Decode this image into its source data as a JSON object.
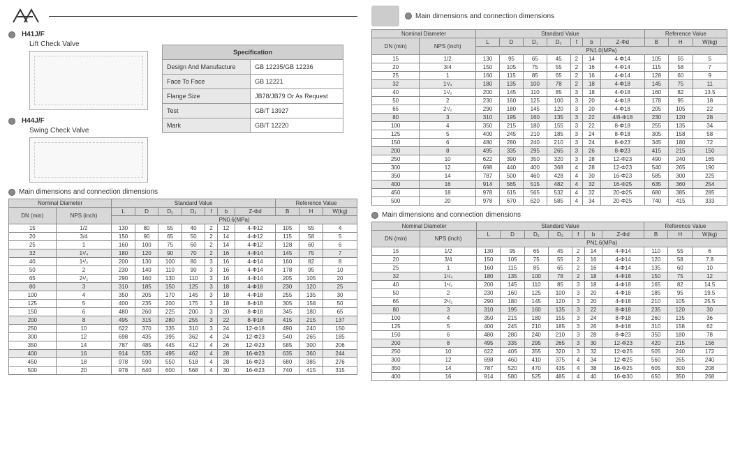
{
  "header": {
    "logo_alt": "Logo"
  },
  "products": [
    {
      "code": "H41J/F",
      "name": "Lift Check Valve"
    },
    {
      "code": "H44J/F",
      "name": "Swing Check Valve"
    }
  ],
  "spec": {
    "header": "Specification",
    "rows": [
      {
        "key": "Design And Manufacture",
        "val": "GB 12235/GB 12236"
      },
      {
        "key": "Face To Face",
        "val": "GB 12221"
      },
      {
        "key": "Flange Size",
        "val": "JB78/JB79 Or As Request"
      },
      {
        "key": "Test",
        "val": "GB/T 13927"
      },
      {
        "key": "Mark",
        "val": "GB/T 12220"
      }
    ]
  },
  "section_title": "Main dimensions and connection dimensions",
  "table_headers": {
    "nominal": "Nominal Diameter",
    "standard": "Standard Value",
    "reference": "Reference Value",
    "dn": "DN (min)",
    "nps": "NPS (inch)",
    "cols": [
      "L",
      "D",
      "D₁",
      "D₂",
      "f",
      "b",
      "Z-Φd",
      "B",
      "H",
      "W(kg)"
    ]
  },
  "tables": [
    {
      "pn_label": "PN0.6(MPa)",
      "rows": [
        [
          "15",
          "1/2",
          "130",
          "80",
          "55",
          "40",
          "2",
          "12",
          "4-Φ12",
          "105",
          "55",
          "4"
        ],
        [
          "20",
          "3/4",
          "150",
          "90",
          "65",
          "50",
          "2",
          "14",
          "4-Φ12",
          "115",
          "58",
          "5"
        ],
        [
          "25",
          "1",
          "160",
          "100",
          "75",
          "60",
          "2",
          "14",
          "4-Φ12",
          "128",
          "60",
          "6"
        ],
        [
          "32",
          "1¹/₄",
          "180",
          "120",
          "90",
          "70",
          "2",
          "16",
          "4-Φ14",
          "145",
          "75",
          "7"
        ],
        [
          "40",
          "1¹/₂",
          "200",
          "130",
          "100",
          "80",
          "3",
          "16",
          "4-Φ14",
          "160",
          "82",
          "8"
        ],
        [
          "50",
          "2",
          "230",
          "140",
          "110",
          "90",
          "3",
          "16",
          "4-Φ14",
          "178",
          "95",
          "10"
        ],
        [
          "65",
          "2¹/₂",
          "290",
          "160",
          "130",
          "110",
          "3",
          "16",
          "4-Φ14",
          "205",
          "105",
          "20"
        ],
        [
          "80",
          "3",
          "310",
          "185",
          "150",
          "125",
          "3",
          "18",
          "4-Φ18",
          "230",
          "120",
          "25"
        ],
        [
          "100",
          "4",
          "350",
          "205",
          "170",
          "145",
          "3",
          "18",
          "4-Φ18",
          "255",
          "135",
          "30"
        ],
        [
          "125",
          "5",
          "400",
          "235",
          "200",
          "175",
          "3",
          "18",
          "8-Φ18",
          "305",
          "158",
          "50"
        ],
        [
          "150",
          "6",
          "480",
          "260",
          "225",
          "200",
          "3",
          "20",
          "8-Φ18",
          "345",
          "180",
          "65"
        ],
        [
          "200",
          "8",
          "495",
          "315",
          "280",
          "255",
          "3",
          "22",
          "8-Φ18",
          "415",
          "215",
          "137"
        ],
        [
          "250",
          "10",
          "622",
          "370",
          "335",
          "310",
          "3",
          "24",
          "12-Φ18",
          "490",
          "240",
          "150"
        ],
        [
          "300",
          "12",
          "698",
          "435",
          "395",
          "362",
          "4",
          "24",
          "12-Φ23",
          "540",
          "265",
          "185"
        ],
        [
          "350",
          "14",
          "787",
          "485",
          "445",
          "412",
          "4",
          "26",
          "12-Φ23",
          "585",
          "300",
          "206"
        ],
        [
          "400",
          "16",
          "914",
          "535",
          "495",
          "462",
          "4",
          "28",
          "16-Φ23",
          "635",
          "360",
          "244"
        ],
        [
          "450",
          "18",
          "978",
          "590",
          "550",
          "518",
          "4",
          "28",
          "16-Φ23",
          "680",
          "385",
          "276"
        ],
        [
          "500",
          "20",
          "978",
          "640",
          "600",
          "568",
          "4",
          "30",
          "16-Φ23",
          "740",
          "415",
          "315"
        ]
      ]
    },
    {
      "pn_label": "PN1.0(MPa)",
      "rows": [
        [
          "15",
          "1/2",
          "130",
          "95",
          "65",
          "45",
          "2",
          "14",
          "4-Φ14",
          "105",
          "55",
          "5"
        ],
        [
          "20",
          "3/4",
          "150",
          "105",
          "75",
          "55",
          "2",
          "16",
          "4-Φ14",
          "115",
          "58",
          "7"
        ],
        [
          "25",
          "1",
          "160",
          "115",
          "85",
          "65",
          "2",
          "16",
          "4-Φ14",
          "128",
          "60",
          "9"
        ],
        [
          "32",
          "1¹/₄",
          "180",
          "135",
          "100",
          "78",
          "2",
          "18",
          "4-Φ18",
          "145",
          "75",
          "11"
        ],
        [
          "40",
          "1¹/₂",
          "200",
          "145",
          "110",
          "85",
          "3",
          "18",
          "4-Φ18",
          "160",
          "82",
          "13.5"
        ],
        [
          "50",
          "2",
          "230",
          "160",
          "125",
          "100",
          "3",
          "20",
          "4-Φ18",
          "178",
          "95",
          "18"
        ],
        [
          "65",
          "2¹/₂",
          "290",
          "180",
          "145",
          "120",
          "3",
          "20",
          "4-Φ18",
          "205",
          "105",
          "22"
        ],
        [
          "80",
          "3",
          "310",
          "195",
          "160",
          "135",
          "3",
          "22",
          "4/8-Φ18",
          "230",
          "120",
          "28"
        ],
        [
          "100",
          "4",
          "350",
          "215",
          "180",
          "155",
          "3",
          "22",
          "8-Φ18",
          "255",
          "135",
          "34"
        ],
        [
          "125",
          "5",
          "400",
          "245",
          "210",
          "185",
          "3",
          "24",
          "8-Φ18",
          "305",
          "158",
          "58"
        ],
        [
          "150",
          "6",
          "480",
          "280",
          "240",
          "210",
          "3",
          "24",
          "8-Φ23",
          "345",
          "180",
          "72"
        ],
        [
          "200",
          "8",
          "495",
          "335",
          "295",
          "265",
          "3",
          "26",
          "8-Φ23",
          "415",
          "215",
          "150"
        ],
        [
          "250",
          "10",
          "622",
          "390",
          "350",
          "320",
          "3",
          "28",
          "12-Φ23",
          "490",
          "240",
          "165"
        ],
        [
          "300",
          "12",
          "698",
          "440",
          "400",
          "368",
          "4",
          "28",
          "12-Φ23",
          "540",
          "265",
          "190"
        ],
        [
          "350",
          "14",
          "787",
          "500",
          "460",
          "428",
          "4",
          "30",
          "16-Φ23",
          "585",
          "300",
          "225"
        ],
        [
          "400",
          "16",
          "914",
          "565",
          "515",
          "482",
          "4",
          "32",
          "16-Φ25",
          "635",
          "360",
          "254"
        ],
        [
          "450",
          "18",
          "978",
          "615",
          "565",
          "532",
          "4",
          "32",
          "20-Φ25",
          "680",
          "385",
          "285"
        ],
        [
          "500",
          "20",
          "978",
          "670",
          "620",
          "585",
          "4",
          "34",
          "20-Φ25",
          "740",
          "415",
          "333"
        ]
      ]
    },
    {
      "pn_label": "PN1.6(MPa)",
      "rows": [
        [
          "15",
          "1/2",
          "130",
          "95",
          "65",
          "45",
          "2",
          "14",
          "4-Φ14",
          "110",
          "55",
          "6"
        ],
        [
          "20",
          "3/4",
          "150",
          "105",
          "75",
          "55",
          "2",
          "16",
          "4-Φ14",
          "120",
          "58",
          "7.8"
        ],
        [
          "25",
          "1",
          "160",
          "115",
          "85",
          "65",
          "2",
          "16",
          "4-Φ14",
          "135",
          "60",
          "10"
        ],
        [
          "32",
          "1¹/₄",
          "180",
          "135",
          "100",
          "78",
          "2",
          "18",
          "4-Φ18",
          "150",
          "75",
          "12"
        ],
        [
          "40",
          "1¹/₂",
          "200",
          "145",
          "110",
          "85",
          "3",
          "18",
          "4-Φ18",
          "165",
          "82",
          "14.5"
        ],
        [
          "50",
          "2",
          "230",
          "160",
          "125",
          "100",
          "3",
          "20",
          "4-Φ18",
          "185",
          "95",
          "19.5"
        ],
        [
          "65",
          "2¹/₂",
          "290",
          "180",
          "145",
          "120",
          "3",
          "20",
          "4-Φ18",
          "210",
          "105",
          "25.5"
        ],
        [
          "80",
          "3",
          "310",
          "195",
          "160",
          "135",
          "3",
          "22",
          "8-Φ18",
          "235",
          "120",
          "30"
        ],
        [
          "100",
          "4",
          "350",
          "215",
          "180",
          "155",
          "3",
          "24",
          "8-Φ18",
          "260",
          "135",
          "36"
        ],
        [
          "125",
          "5",
          "400",
          "245",
          "210",
          "185",
          "3",
          "26",
          "8-Φ18",
          "310",
          "158",
          "62"
        ],
        [
          "150",
          "6",
          "480",
          "280",
          "240",
          "210",
          "3",
          "28",
          "8-Φ23",
          "350",
          "180",
          "78"
        ],
        [
          "200",
          "8",
          "495",
          "335",
          "295",
          "265",
          "3",
          "30",
          "12-Φ23",
          "420",
          "215",
          "156"
        ],
        [
          "250",
          "10",
          "622",
          "405",
          "355",
          "320",
          "3",
          "32",
          "12-Φ25",
          "505",
          "240",
          "172"
        ],
        [
          "300",
          "12",
          "698",
          "460",
          "410",
          "375",
          "4",
          "34",
          "12-Φ25",
          "560",
          "265",
          "240"
        ],
        [
          "350",
          "14",
          "787",
          "520",
          "470",
          "435",
          "4",
          "38",
          "16-Φ25",
          "605",
          "300",
          "208"
        ],
        [
          "400",
          "16",
          "914",
          "580",
          "525",
          "485",
          "4",
          "40",
          "16-Φ30",
          "650",
          "350",
          "268"
        ]
      ]
    }
  ],
  "shade_rows": {
    "0": [
      3,
      7,
      11,
      15
    ],
    "1": [
      3,
      7,
      11,
      15
    ],
    "2": [
      3,
      7,
      11
    ]
  }
}
